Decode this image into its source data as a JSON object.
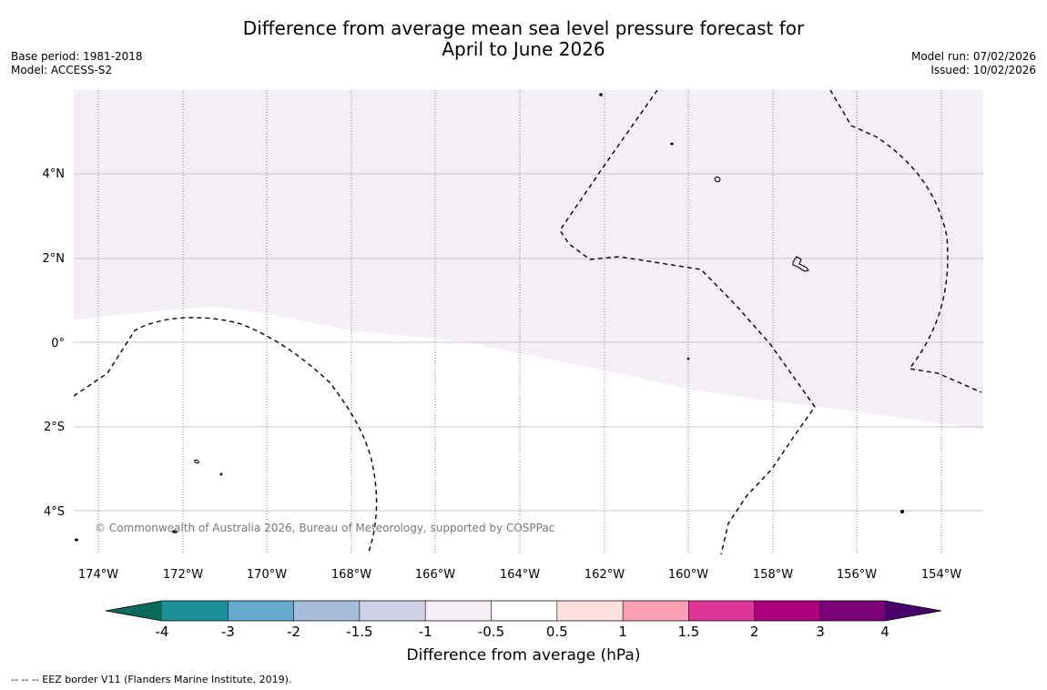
{
  "header": {
    "title_line1": "Difference from average mean sea level pressure forecast for",
    "title_line2": "April to June 2026",
    "base_period": "Base period: 1981-2018",
    "model": "Model: ACCESS-S2",
    "model_run": "Model run: 07/02/2026",
    "issued": "Issued: 10/02/2026"
  },
  "map": {
    "lon_labels": [
      "174°W",
      "172°W",
      "170°W",
      "168°W",
      "166°W",
      "164°W",
      "162°W",
      "160°W",
      "158°W",
      "156°W",
      "154°W"
    ],
    "lat_labels": [
      "4°N",
      "2°N",
      "0°",
      "2°S",
      "4°S"
    ],
    "copyright": "© Commonwealth of Australia 2026, Bureau of Meteorology, supported by COSPPac",
    "region_fill_color": "#f4eef6",
    "region_fill_category": "-1 to -0.5 hPa"
  },
  "colorbar": {
    "ticks": [
      "-4",
      "-3",
      "-2",
      "-1.5",
      "-1",
      "-0.5",
      "0.5",
      "1",
      "1.5",
      "2",
      "3",
      "4"
    ],
    "colors": [
      "#0d6b5e",
      "#1c9099",
      "#67a9cf",
      "#a6bddb",
      "#d0d1e6",
      "#f6eff7",
      "#ffffff",
      "#fde0dd",
      "#fa9fb5",
      "#dd3497",
      "#ae017e",
      "#7a0177",
      "#49006a"
    ],
    "title": "Difference from average (hPa)"
  },
  "footnote": "--  --  -- EEZ border V11 (Flanders Marine Institute, 2019)."
}
